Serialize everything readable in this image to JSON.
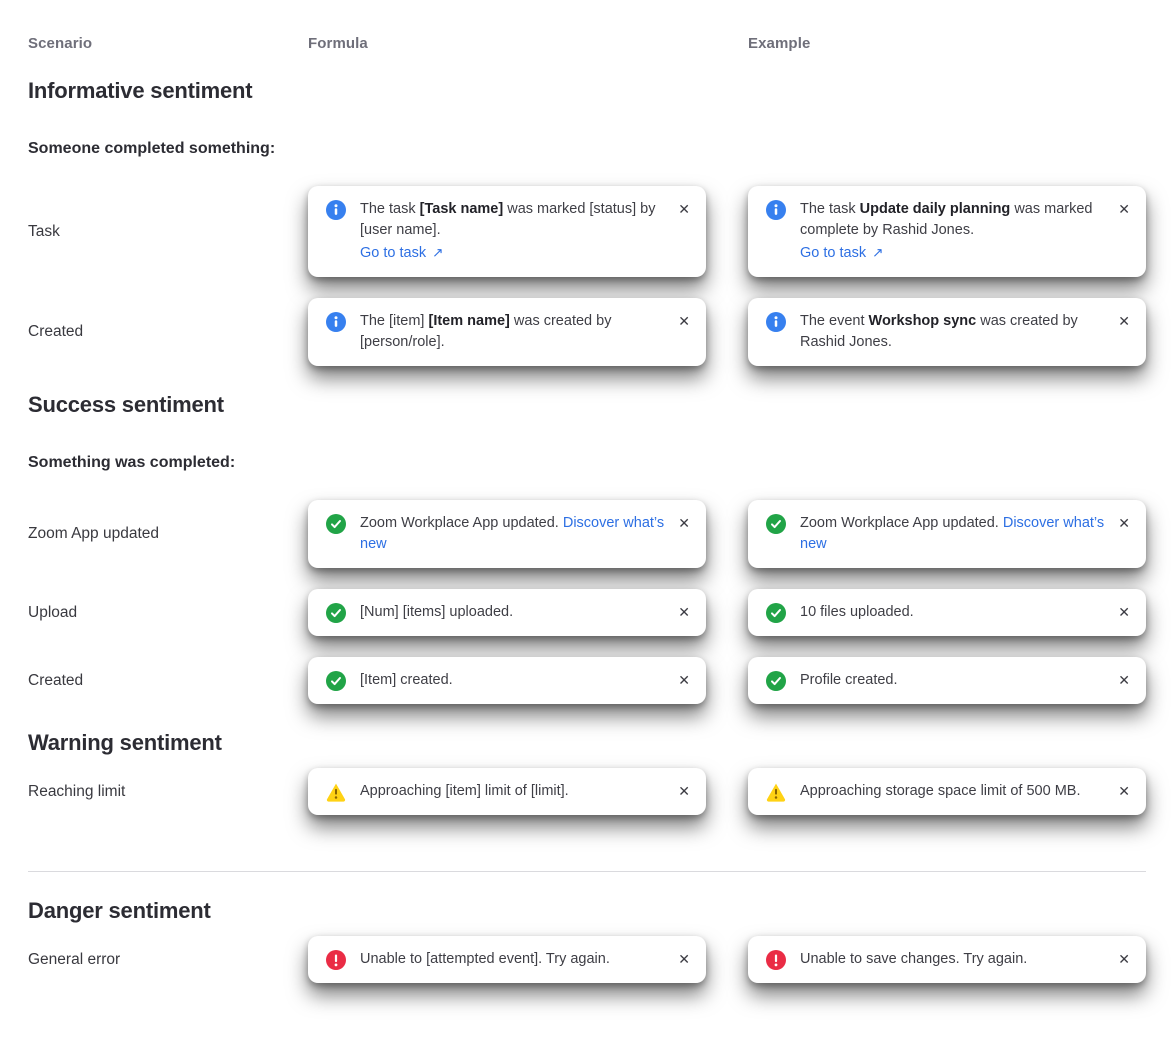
{
  "header": {
    "columns": [
      "Scenario",
      "Formula",
      "Example"
    ]
  },
  "toast": {
    "close_glyph": "✕",
    "link_arrow": "↗"
  },
  "colors": {
    "info": "#3780EF",
    "success": "#21A447",
    "warning": "#FFD214",
    "warning_mark": "#8A6400",
    "danger": "#EA2C45",
    "link": "#2D6FE3"
  },
  "sections": [
    {
      "title": "Informative sentiment",
      "subtitle": "Someone completed something:",
      "rows": [
        {
          "scenario": "Task",
          "formula": {
            "icon": "info",
            "segments": [
              {
                "t": "The task ",
                "b": false
              },
              {
                "t": "[Task name]",
                "b": true
              },
              {
                "t": " was marked [status] by [user name].",
                "b": false
              }
            ],
            "action_link": "Go to task"
          },
          "example": {
            "icon": "info",
            "segments": [
              {
                "t": "The task ",
                "b": false
              },
              {
                "t": "Update daily planning",
                "b": true
              },
              {
                "t": " was marked complete by Rashid Jones.",
                "b": false
              }
            ],
            "action_link": "Go to task"
          }
        },
        {
          "scenario": "Created",
          "formula": {
            "icon": "info",
            "segments": [
              {
                "t": "The [item] ",
                "b": false
              },
              {
                "t": "[Item name]",
                "b": true
              },
              {
                "t": " was created by [person/role].",
                "b": false
              }
            ]
          },
          "example": {
            "icon": "info",
            "segments": [
              {
                "t": "The event ",
                "b": false
              },
              {
                "t": "Workshop sync",
                "b": true
              },
              {
                "t": " was created by Rashid Jones.",
                "b": false
              }
            ]
          }
        }
      ]
    },
    {
      "title": "Success sentiment",
      "subtitle": "Something was completed:",
      "rows": [
        {
          "scenario": "Zoom App updated",
          "formula": {
            "icon": "success",
            "segments": [
              {
                "t": "Zoom Workplace App updated. ",
                "b": false
              }
            ],
            "inline_link": "Discover what’s new"
          },
          "example": {
            "icon": "success",
            "segments": [
              {
                "t": "Zoom Workplace App updated. ",
                "b": false
              }
            ],
            "inline_link": "Discover what’s new"
          }
        },
        {
          "scenario": "Upload",
          "formula": {
            "icon": "success",
            "segments": [
              {
                "t": "[Num] [items] uploaded.",
                "b": false
              }
            ]
          },
          "example": {
            "icon": "success",
            "segments": [
              {
                "t": "10 files uploaded.",
                "b": false
              }
            ]
          }
        },
        {
          "scenario": "Created",
          "formula": {
            "icon": "success",
            "segments": [
              {
                "t": "[Item] created.",
                "b": false
              }
            ]
          },
          "example": {
            "icon": "success",
            "segments": [
              {
                "t": "Profile created.",
                "b": false
              }
            ]
          }
        }
      ]
    },
    {
      "title": "Warning sentiment",
      "subtitle": null,
      "rows": [
        {
          "scenario": "Reaching limit",
          "formula": {
            "icon": "warning",
            "segments": [
              {
                "t": "Approaching [item] limit of [limit].",
                "b": false
              }
            ]
          },
          "example": {
            "icon": "warning",
            "segments": [
              {
                "t": "Approaching storage space limit of 500 MB.",
                "b": false
              }
            ]
          }
        }
      ]
    },
    {
      "title": "Danger sentiment",
      "subtitle": null,
      "divider_before": true,
      "rows": [
        {
          "scenario": "General error",
          "formula": {
            "icon": "danger",
            "segments": [
              {
                "t": "Unable to [attempted event]. Try again.",
                "b": false
              }
            ]
          },
          "example": {
            "icon": "danger",
            "segments": [
              {
                "t": "Unable to save changes. Try again.",
                "b": false
              }
            ]
          }
        }
      ]
    }
  ]
}
